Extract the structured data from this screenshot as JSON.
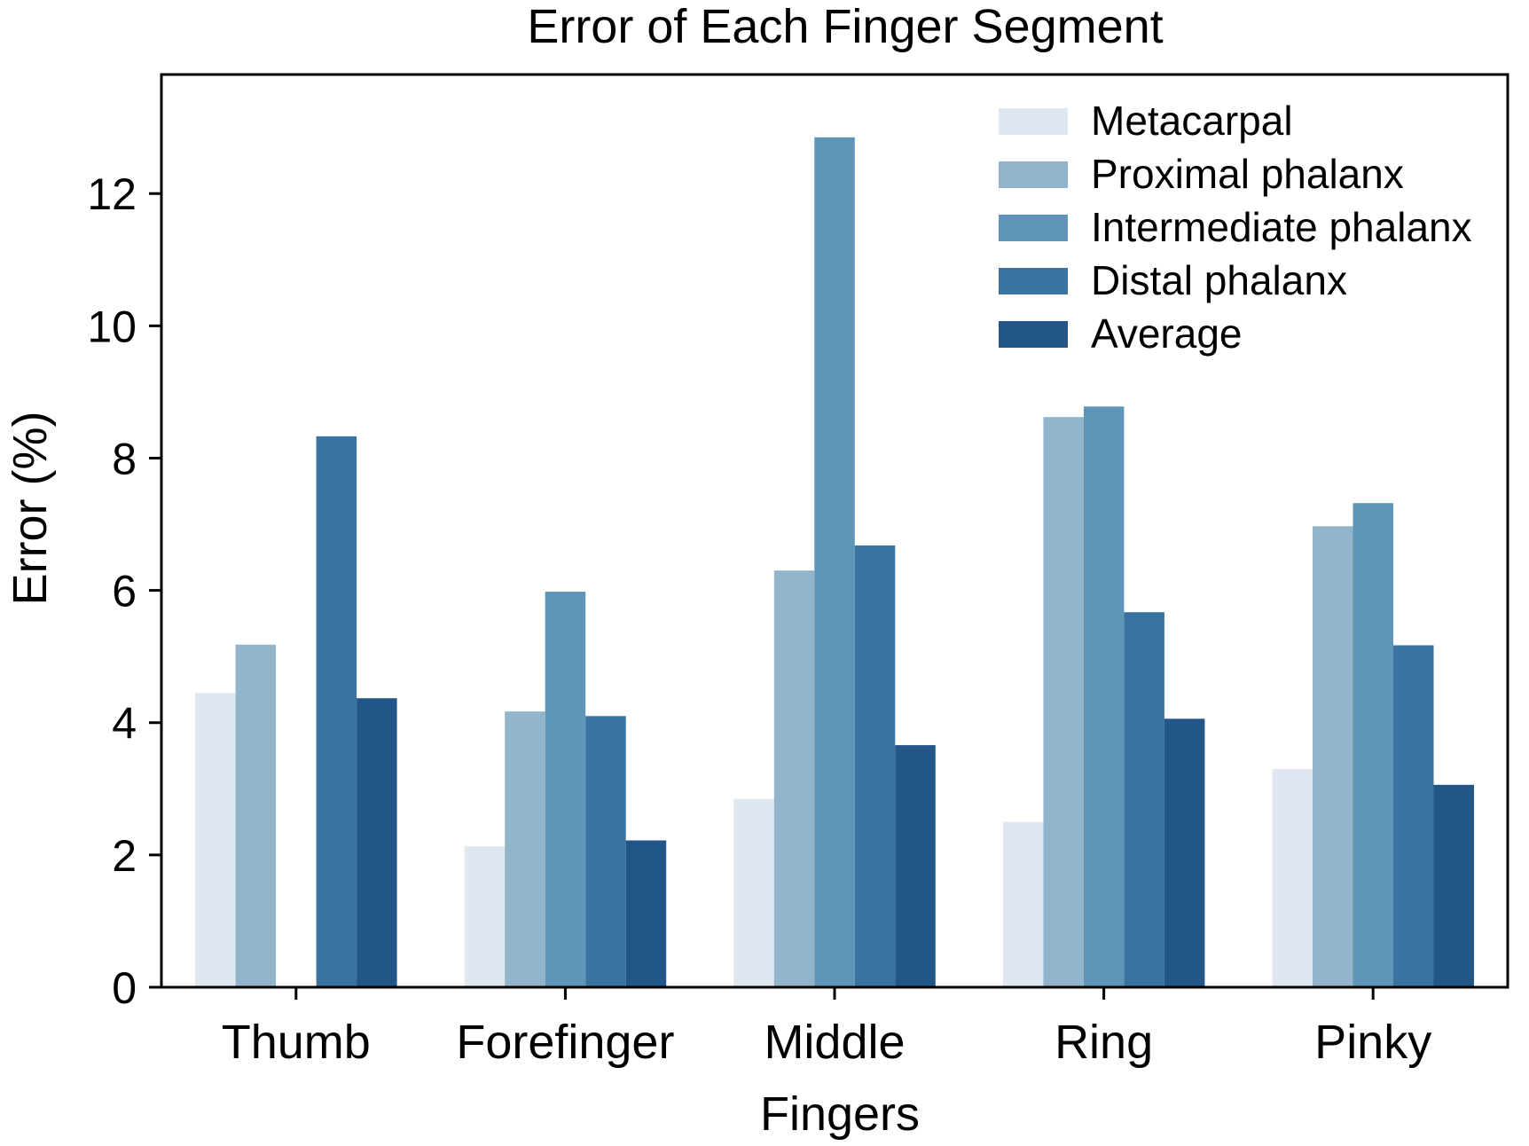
{
  "chart_data": {
    "type": "bar",
    "title": "Error of Each Finger Segment",
    "xlabel": "Fingers",
    "ylabel": "Error (%)",
    "categories": [
      "Thumb",
      "Forefinger",
      "Middle",
      "Ring",
      "Pinky"
    ],
    "ylim": [
      0,
      13.8
    ],
    "yticks": [
      "0",
      "2",
      "4",
      "6",
      "8",
      "10",
      "12"
    ],
    "grid": false,
    "legend_position": "top-right",
    "series": [
      {
        "name": "Metacarpal",
        "color": "#dfe8f1",
        "values": [
          4.45,
          2.13,
          2.85,
          2.5,
          3.3
        ]
      },
      {
        "name": "Proximal phalanx",
        "color": "#92b5cc",
        "values": [
          5.18,
          4.17,
          6.3,
          8.62,
          6.97
        ]
      },
      {
        "name": "Intermediate phalanx",
        "color": "#5f95b8",
        "values": [
          null,
          5.98,
          12.85,
          8.78,
          7.32
        ]
      },
      {
        "name": "Distal phalanx",
        "color": "#3a73a0",
        "values": [
          8.33,
          4.1,
          6.68,
          5.67,
          5.17
        ]
      },
      {
        "name": "Average",
        "color": "#225588",
        "values": [
          4.37,
          2.22,
          3.66,
          4.06,
          3.06
        ]
      }
    ]
  }
}
